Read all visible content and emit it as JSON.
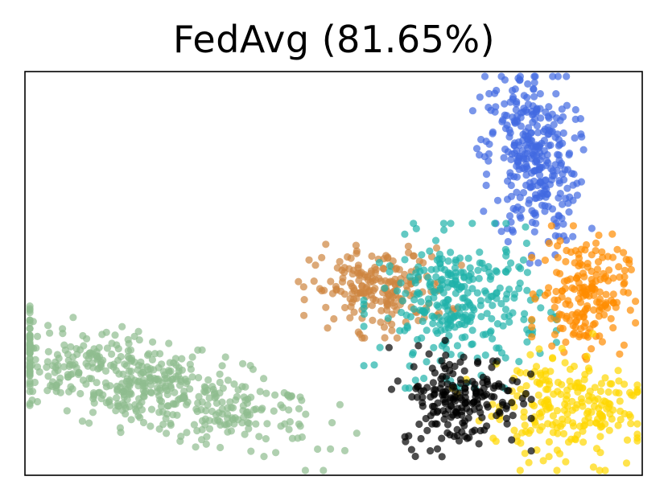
{
  "chart_data": {
    "type": "scatter",
    "title": "FedAvg (81.65%)",
    "xlabel": "",
    "ylabel": "",
    "xticks": false,
    "yticks": false,
    "grid": false,
    "legend": "none",
    "xlim": [
      0,
      100
    ],
    "ylim": [
      0,
      100
    ],
    "point_alpha": 0.7,
    "clusters": [
      {
        "color": "#8fbc8f",
        "count": 520,
        "center": [
          19.5,
          22
        ],
        "spread": [
          15,
          5
        ],
        "axis_angle_deg": -24
      },
      {
        "color": "#4169e1",
        "count": 330,
        "center": [
          82,
          79
        ],
        "spread": [
          3.6,
          11
        ],
        "axis_angle_deg": 4
      },
      {
        "color": "#cd853f",
        "count": 200,
        "center": [
          57.5,
          46
        ],
        "spread": [
          5.5,
          5
        ],
        "axis_angle_deg": 0
      },
      {
        "color": "#20b2aa",
        "count": 300,
        "center": [
          70.5,
          42
        ],
        "spread": [
          6.5,
          8.5
        ],
        "axis_angle_deg": 0
      },
      {
        "color": "#ff8c00",
        "count": 190,
        "center": [
          90.5,
          45
        ],
        "spread": [
          3.5,
          7
        ],
        "axis_angle_deg": 0
      },
      {
        "color": "#ffd700",
        "count": 230,
        "center": [
          88,
          17
        ],
        "spread": [
          6,
          7
        ],
        "axis_angle_deg": 28
      },
      {
        "color": "#000000",
        "count": 200,
        "center": [
          70.5,
          19
        ],
        "spread": [
          4.8,
          6
        ],
        "axis_angle_deg": 0
      }
    ]
  }
}
